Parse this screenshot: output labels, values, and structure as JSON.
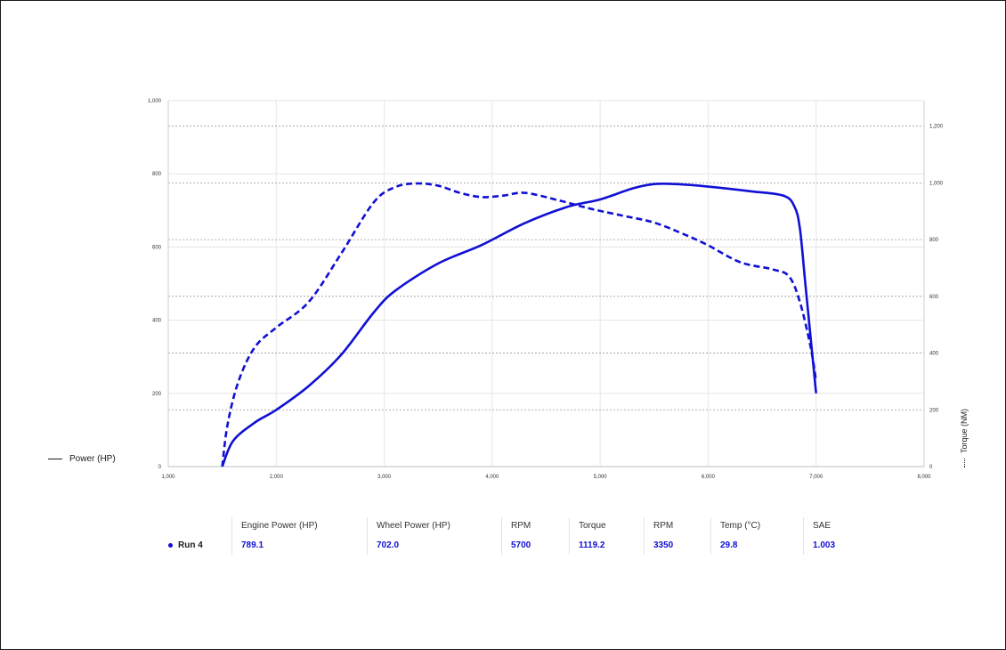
{
  "colors": {
    "series": "#1010d4",
    "grid": "#e6e6e6",
    "dashed_grid": "#9a9a9a"
  },
  "legend": {
    "left_label": "Power (HP)",
    "right_label": "Torque (NM)"
  },
  "chart_data": {
    "type": "line",
    "x_ticks": [
      "1,000",
      "2,000",
      "3,000",
      "4,000",
      "5,000",
      "6,000",
      "7,000",
      "8,000"
    ],
    "y_left_ticks": [
      "0",
      "200",
      "400",
      "600",
      "800",
      "1,000"
    ],
    "y_right_ticks": [
      "0",
      "200",
      "400",
      "600",
      "800",
      "1,000",
      "1,200"
    ],
    "x_range": [
      1000,
      8000
    ],
    "y_left_range": [
      0,
      1000
    ],
    "y_right_range": [
      0,
      1290
    ],
    "grid": true,
    "series": [
      {
        "name": "Power (HP)",
        "axis": "left",
        "style": "solid",
        "x": [
          1500,
          1600,
          1800,
          2000,
          2300,
          2600,
          2900,
          3100,
          3500,
          3900,
          4300,
          4700,
          5000,
          5300,
          5500,
          5700,
          6000,
          6400,
          6700,
          6800,
          6850,
          6900,
          6950,
          7000
        ],
        "y": [
          0,
          70,
          120,
          155,
          220,
          305,
          420,
          480,
          555,
          605,
          665,
          710,
          730,
          760,
          772,
          772,
          765,
          752,
          740,
          710,
          650,
          500,
          350,
          200
        ]
      },
      {
        "name": "Torque (NM)",
        "axis": "right",
        "style": "dashed",
        "x": [
          1500,
          1550,
          1650,
          1800,
          2000,
          2300,
          2600,
          2900,
          3100,
          3300,
          3500,
          3700,
          3900,
          4100,
          4300,
          4600,
          4900,
          5200,
          5500,
          5800,
          6000,
          6300,
          6600,
          6750,
          6850,
          6950,
          7000
        ],
        "y": [
          0,
          150,
          300,
          420,
          490,
          580,
          750,
          930,
          985,
          998,
          990,
          965,
          950,
          955,
          965,
          940,
          910,
          885,
          860,
          815,
          780,
          720,
          695,
          670,
          580,
          420,
          300
        ]
      }
    ]
  },
  "table": {
    "headers": [
      "Engine Power (HP)",
      "Wheel Power (HP)",
      "RPM",
      "Torque",
      "RPM",
      "Temp (°C)",
      "SAE"
    ],
    "run_label": "Run 4",
    "values": [
      "789.1",
      "702.0",
      "5700",
      "1119.2",
      "3350",
      "29.8",
      "1.003"
    ]
  }
}
